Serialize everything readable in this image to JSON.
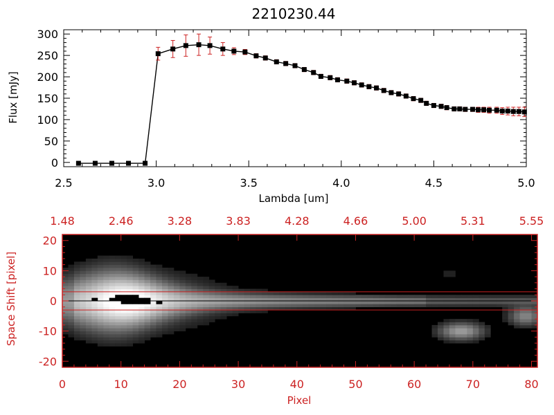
{
  "chart_data": [
    {
      "type": "line",
      "title": "2210230.44",
      "xlabel": "Lambda [um]",
      "ylabel": "Flux [mJy]",
      "xlim": [
        2.5,
        5.0
      ],
      "ylim": [
        -10,
        310
      ],
      "xticks": [
        "2.5",
        "3.0",
        "3.5",
        "4.0",
        "4.5",
        "5.0"
      ],
      "yticks": [
        "0",
        "50",
        "100",
        "150",
        "200",
        "250",
        "300"
      ],
      "line_color": "#000000",
      "marker_color": "#000000",
      "errorbar_color": "#cc2222",
      "series": [
        {
          "x": [
            2.58,
            2.67,
            2.76,
            2.85,
            2.94,
            3.01,
            3.09,
            3.16,
            3.23,
            3.29,
            3.36,
            3.42,
            3.48,
            3.54,
            3.59,
            3.65,
            3.7,
            3.75,
            3.8,
            3.85,
            3.89,
            3.94,
            3.98,
            4.03,
            4.07,
            4.11,
            4.15,
            4.19,
            4.23,
            4.27,
            4.31,
            4.35,
            4.39,
            4.43,
            4.46,
            4.5,
            4.54,
            4.57,
            4.61,
            4.64,
            4.67,
            4.71,
            4.74,
            4.77,
            4.8,
            4.84,
            4.87,
            4.9,
            4.93,
            4.96,
            4.99
          ],
          "y": [
            -2,
            -2,
            -2,
            -2,
            -2,
            254,
            265,
            273,
            275,
            273,
            265,
            260,
            258,
            249,
            244,
            235,
            231,
            226,
            217,
            210,
            201,
            198,
            193,
            190,
            186,
            181,
            177,
            174,
            168,
            163,
            160,
            155,
            149,
            145,
            138,
            133,
            131,
            128,
            125,
            125,
            124,
            124,
            123,
            123,
            122,
            122,
            120,
            120,
            119,
            119,
            118
          ],
          "err": [
            0,
            0,
            0,
            0,
            0,
            15,
            20,
            25,
            25,
            20,
            15,
            8,
            6,
            5,
            5,
            5,
            5,
            5,
            5,
            5,
            5,
            5,
            5,
            5,
            5,
            5,
            5,
            5,
            5,
            5,
            5,
            5,
            5,
            5,
            5,
            5,
            5,
            5,
            5,
            5,
            5,
            5,
            6,
            6,
            7,
            7,
            8,
            9,
            10,
            10,
            11
          ]
        }
      ]
    },
    {
      "type": "heatmap",
      "xlabel": "Pixel",
      "ylabel": "Space Shift [pixel]",
      "xlim": [
        0,
        81
      ],
      "ylim": [
        -22,
        22
      ],
      "xticks": [
        "0",
        "10",
        "20",
        "30",
        "40",
        "50",
        "60",
        "70",
        "80"
      ],
      "yticks": [
        "-20",
        "-10",
        "0",
        "10",
        "20"
      ],
      "top_xticks": [
        "1.48",
        "2.46",
        "3.28",
        "3.83",
        "4.28",
        "4.66",
        "5.00",
        "5.31",
        "5.55"
      ],
      "top_xticks_at": [
        0,
        10,
        20,
        30,
        40,
        50,
        60,
        70,
        80
      ],
      "axis_color": "#cc2222",
      "extraction_lines": [
        3,
        0,
        -3
      ],
      "colormap": "grayscale"
    }
  ]
}
